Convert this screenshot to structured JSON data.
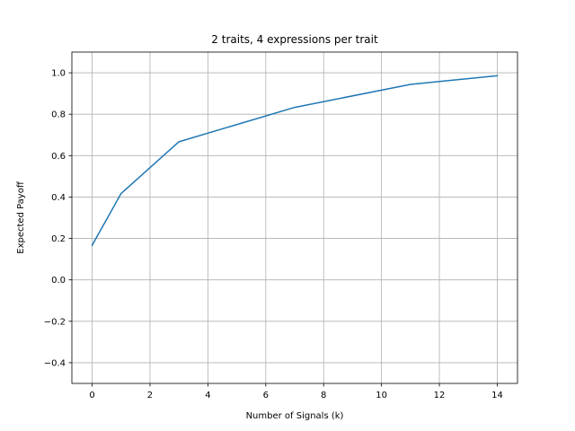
{
  "chart_data": {
    "type": "line",
    "title": "2 traits, 4 expressions per trait",
    "xlabel": "Number of Signals (k)",
    "ylabel": "Expected Payoff",
    "xlim": [
      -0.7,
      14.7
    ],
    "ylim": [
      -0.5,
      1.1
    ],
    "xticks": [
      0,
      2,
      4,
      6,
      8,
      10,
      12,
      14
    ],
    "xtick_labels": [
      "0",
      "2",
      "4",
      "6",
      "8",
      "10",
      "12",
      "14"
    ],
    "yticks": [
      -0.4,
      -0.2,
      0.0,
      0.2,
      0.4,
      0.6,
      0.8,
      1.0
    ],
    "ytick_labels": [
      "−0.4",
      "−0.2",
      "0.0",
      "0.2",
      "0.4",
      "0.6",
      "0.8",
      "1.0"
    ],
    "grid": true,
    "series": [
      {
        "color": "#1f77b4",
        "x": [
          0,
          1,
          3,
          7,
          11,
          14
        ],
        "y": [
          0.167,
          0.417,
          0.667,
          0.833,
          0.944,
          0.986
        ]
      }
    ]
  }
}
